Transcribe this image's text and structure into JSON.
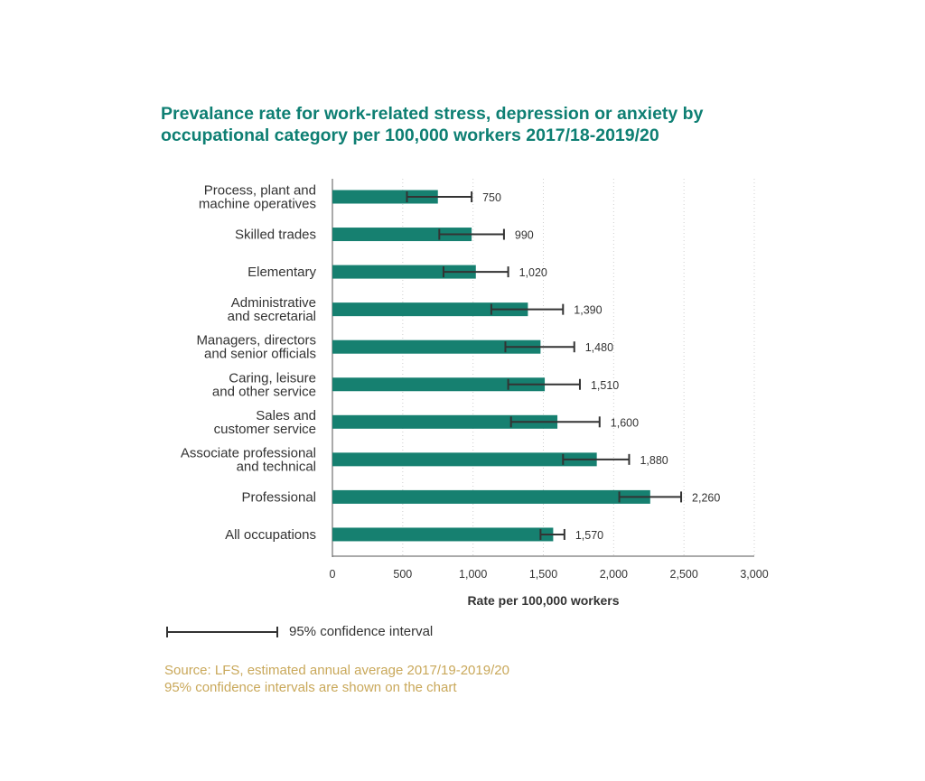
{
  "title": {
    "line1": "Prevalance rate for work-related stress, depression or anxiety by",
    "line2": "occupational category per 100,000 workers 2017/18-2019/20"
  },
  "colors": {
    "title": "#0e7f73",
    "bar": "#168070",
    "error_bar": "#333333",
    "gridline": "#cfcfcf",
    "source_text": "#c9a85a"
  },
  "chart_data": {
    "type": "bar",
    "orientation": "horizontal",
    "categories": [
      [
        "Process, plant and",
        "machine operatives"
      ],
      [
        "Skilled trades"
      ],
      [
        "Elementary"
      ],
      [
        "Administrative",
        "and secretarial"
      ],
      [
        "Managers, directors",
        "and senior officials"
      ],
      [
        "Caring, leisure",
        "and other service"
      ],
      [
        "Sales and",
        "customer service"
      ],
      [
        "Associate professional",
        "and technical"
      ],
      [
        "Professional"
      ],
      [
        "All occupations"
      ]
    ],
    "values": [
      750,
      990,
      1020,
      1390,
      1480,
      1510,
      1600,
      1880,
      2260,
      1570
    ],
    "value_labels": [
      "750",
      "990",
      "1,020",
      "1,390",
      "1,480",
      "1,510",
      "1,600",
      "1,880",
      "2,260",
      "1,570"
    ],
    "ci_lower": [
      530,
      760,
      790,
      1130,
      1230,
      1250,
      1270,
      1640,
      2040,
      1480
    ],
    "ci_upper": [
      990,
      1220,
      1250,
      1640,
      1720,
      1760,
      1900,
      2110,
      2480,
      1650
    ],
    "xlabel": "Rate per 100,000 workers",
    "xlim": [
      0,
      3000
    ],
    "xticks": [
      0,
      500,
      1000,
      1500,
      2000,
      2500,
      3000
    ],
    "xtick_labels": [
      "0",
      "500",
      "1,000",
      "1,500",
      "2,000",
      "2,500",
      "3,000"
    ],
    "grid": "vertical dotted"
  },
  "legend": {
    "label": "95% confidence interval"
  },
  "source": {
    "line1": "Source: LFS, estimated annual average 2017/19-2019/20",
    "line2": "95% confidence intervals are shown on the chart"
  }
}
